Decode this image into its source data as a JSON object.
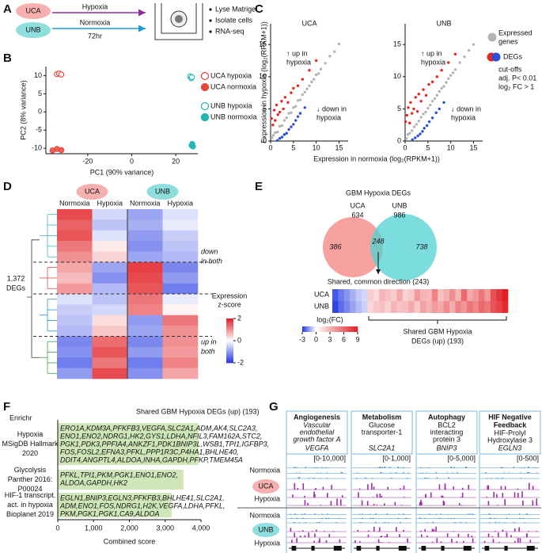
{
  "panel_labels": [
    "A",
    "B",
    "C",
    "D",
    "E",
    "F",
    "G"
  ],
  "design": {
    "groups": [
      "UCA",
      "UNB"
    ],
    "hypoxia": "Hypoxia",
    "normoxia": "Normoxia",
    "duration": "72hr",
    "steps": [
      "Lyse Matrigel",
      "Isolate cells",
      "RNA-seq"
    ]
  },
  "chart_data": [
    {
      "type": "pca",
      "xlabel": "PC1 (90% variance)",
      "ylabel": "PC2 (8% variance)",
      "xlim": [
        -39,
        30
      ],
      "ylim": [
        -11.5,
        12.5
      ],
      "xticks": [
        -20,
        0,
        20
      ],
      "yticks": [
        -10,
        -5,
        0,
        5,
        10
      ],
      "series": [
        {
          "name": "UCA hypoxia",
          "color": "#e8443a",
          "filled": false,
          "x": [
            -34,
            -33,
            -32
          ],
          "y": [
            10.4,
            10.6,
            10.3
          ]
        },
        {
          "name": "UCA normoxia",
          "color": "#e8443a",
          "filled": true,
          "x": [
            -36,
            -34,
            -32
          ],
          "y": [
            -10.6,
            -10.2,
            -10.5
          ]
        },
        {
          "name": "UNB hypoxia",
          "color": "#1fb5b5",
          "filled": false,
          "x": [
            26.5,
            27,
            27.3
          ],
          "y": [
            9.8,
            9.3,
            9.6
          ]
        },
        {
          "name": "UNB normoxia",
          "color": "#1fb5b5",
          "filled": true,
          "x": [
            27.2,
            27.5,
            27.8
          ],
          "y": [
            -9.2,
            -8.8,
            -9.5
          ]
        }
      ]
    },
    {
      "type": "scatter",
      "title": "UCA",
      "xlabel": "Expression in normoxia (log₂(RPKM+1))",
      "ylabel": "Expression in hypoxia (log₂(RPKM+1))",
      "xlim": [
        0,
        17
      ],
      "ylim": [
        0,
        17
      ],
      "xticks": [
        0,
        5,
        10,
        15
      ],
      "yticks": [
        0,
        5,
        10,
        15
      ],
      "up_label": [
        "↑ up in",
        "hypoxia"
      ],
      "down_label": [
        "↓ down in",
        "hypoxia"
      ],
      "series": [
        {
          "color": "#b3b3b3",
          "x": [
            0.3,
            0.6,
            1,
            1.5,
            2,
            2.5,
            3,
            3.5,
            4,
            4.5,
            5,
            5.5,
            6,
            6.5,
            7,
            7.5,
            8,
            8.5,
            9,
            9.5,
            10,
            10.5,
            11,
            12,
            13,
            14,
            15
          ],
          "y": [
            0.5,
            0.9,
            1.3,
            1.4,
            2.3,
            2.4,
            3.2,
            3.6,
            4.3,
            4.4,
            5.2,
            5.4,
            6.3,
            6.4,
            7.2,
            7.6,
            8.1,
            8.6,
            9.2,
            9.6,
            10.3,
            10.5,
            11.2,
            12.1,
            13.2,
            13.9,
            15.1
          ]
        },
        {
          "color": "#e8261e",
          "x": [
            0.2,
            0.5,
            0.8,
            1,
            1.3,
            1.6,
            2,
            2.4,
            2.8,
            3.2,
            3.8,
            4.5,
            5,
            6,
            7,
            8.5,
            10
          ],
          "y": [
            3.5,
            2.5,
            4.8,
            3.2,
            5.6,
            4.1,
            4.5,
            6.2,
            5,
            6.8,
            6,
            7.5,
            8.2,
            8.6,
            9.6,
            11,
            12.5
          ]
        },
        {
          "color": "#2a4fd6",
          "x": [
            1.5,
            2,
            2.5,
            3,
            3.5,
            4,
            4.5,
            5,
            5.5,
            6,
            6.5,
            7.5
          ],
          "y": [
            0.1,
            0.4,
            0.6,
            1,
            1.2,
            1.8,
            2.2,
            2.6,
            3.2,
            3.8,
            4.3,
            5.2
          ]
        }
      ]
    },
    {
      "type": "scatter",
      "title": "UNB",
      "xlim": [
        0,
        17
      ],
      "ylim": [
        0,
        17
      ],
      "xticks": [
        0,
        5,
        10,
        15
      ],
      "yticks": [
        0,
        5,
        10,
        15
      ],
      "up_label": [
        "↑ up in",
        "hypoxia"
      ],
      "down_label": [
        "↓ down in",
        "hypoxia"
      ],
      "series": [
        {
          "color": "#b3b3b3",
          "x": [
            0.3,
            0.6,
            1,
            1.5,
            2,
            2.5,
            3,
            3.5,
            4,
            4.5,
            5,
            5.5,
            6,
            6.5,
            7,
            7.5,
            8,
            8.5,
            9,
            9.5,
            10,
            10.5,
            11,
            12,
            13,
            14,
            15
          ],
          "y": [
            0.4,
            1,
            1.2,
            1.6,
            2.2,
            2.6,
            3.1,
            3.7,
            4.2,
            4.5,
            5.1,
            5.6,
            6.2,
            6.6,
            7.1,
            7.7,
            8.2,
            8.5,
            9.1,
            9.7,
            10.2,
            10.6,
            11.1,
            12.2,
            13.1,
            14.1,
            15
          ]
        },
        {
          "color": "#e8261e",
          "x": [
            0.1,
            0.4,
            0.7,
            1,
            1.2,
            1.5,
            1.9,
            2.3,
            2.7,
            3,
            3.5,
            4,
            4.6,
            5.2,
            6,
            7,
            8,
            9.5,
            11
          ],
          "y": [
            3,
            4,
            5.2,
            2.8,
            6,
            4.3,
            5,
            6.8,
            4.6,
            7.3,
            6.2,
            8,
            7.1,
            8.8,
            9.2,
            10,
            11,
            12.2,
            13.5
          ]
        },
        {
          "color": "#2a4fd6",
          "x": [
            1.6,
            2.2,
            2.8,
            3.3,
            3.8,
            4.2,
            4.8,
            5.3,
            6,
            6.8,
            7.5,
            8.5
          ],
          "y": [
            0.2,
            0.5,
            0.8,
            1.1,
            1.5,
            2,
            2.4,
            3,
            3.6,
            4.4,
            5,
            6
          ]
        }
      ]
    },
    {
      "type": "heatmap",
      "groups": [
        "UCA",
        "UNB"
      ],
      "columns": [
        "Normoxia",
        "Hypoxia",
        "Normoxia",
        "Hypoxia"
      ],
      "colorbar_label": [
        "Expression",
        "z-score"
      ],
      "vlim": [
        -2,
        2
      ],
      "cticks": [
        2,
        0,
        -2
      ],
      "row_label": [
        "1,372",
        "DEGs"
      ],
      "down_label": [
        "down",
        "in both"
      ],
      "up_label": [
        "up in",
        "both"
      ],
      "values": [
        [
          1.6,
          -0.4,
          -0.9,
          -0.3
        ],
        [
          1.4,
          -0.6,
          -0.8,
          -0.2
        ],
        [
          1.5,
          -0.3,
          -1.0,
          -0.5
        ],
        [
          1.2,
          0.2,
          -1.1,
          -0.6
        ],
        [
          1.0,
          0.4,
          -0.9,
          -0.7
        ],
        [
          0.8,
          -0.9,
          1.7,
          -1.2
        ],
        [
          0.6,
          -1.1,
          1.6,
          -1.0
        ],
        [
          0.9,
          -0.7,
          1.5,
          -1.3
        ],
        [
          -0.3,
          -0.6,
          1.2,
          -0.2
        ],
        [
          -0.5,
          -0.4,
          1.1,
          0.1
        ],
        [
          -0.6,
          0.3,
          -1.0,
          1.2
        ],
        [
          -0.7,
          0.5,
          -0.9,
          1.0
        ],
        [
          -1.2,
          1.3,
          -1.2,
          1.0
        ],
        [
          -1.1,
          1.5,
          -1.0,
          0.9
        ],
        [
          -1.3,
          1.2,
          -1.3,
          1.1
        ],
        [
          -1.0,
          1.6,
          -1.1,
          0.8
        ]
      ]
    },
    {
      "type": "venn",
      "title": "GBM Hypoxia DEGs",
      "sets": [
        {
          "name": "UCA",
          "total": 634,
          "unique": 386,
          "color": "#f4837f"
        },
        {
          "name": "UNB",
          "total": 986,
          "unique": 738,
          "color": "#4fd1d1"
        }
      ],
      "shared": 248,
      "common_direction": "Shared, common direction (243)"
    },
    {
      "type": "strip",
      "rows": [
        "UCA",
        "UNB"
      ],
      "colorbar_label": "log₂(FC)",
      "vlim": [
        -3,
        9
      ],
      "cticks": [
        -3,
        0,
        3,
        6,
        9
      ],
      "bracket_label": [
        "Shared GBM Hypoxia",
        "DEGs (up) (193)"
      ],
      "values": [
        [
          -2.5,
          -2,
          -1.6,
          -1.2,
          -0.8,
          -0.6,
          2,
          1.5,
          3,
          2.5,
          2,
          3.5,
          1.8,
          2.2,
          4,
          3,
          2.8,
          5,
          2.5,
          3.2,
          4.5,
          3,
          6,
          3.5,
          4.2,
          5.5,
          4,
          7,
          8,
          9
        ],
        [
          -2.8,
          -2.2,
          -1.8,
          -1.4,
          -1,
          -0.7,
          1.6,
          2.2,
          2.5,
          1.8,
          3,
          2.4,
          2.6,
          3.4,
          2.2,
          3.8,
          3.1,
          4,
          3.5,
          4.6,
          3.3,
          5,
          4.2,
          5.6,
          4.8,
          6,
          5.4,
          6.8,
          7.5,
          8.5
        ]
      ]
    },
    {
      "type": "bar",
      "title": "Enrichr",
      "subtitle": "Shared GBM Hypoxia DEGs (up) (193)",
      "xlabel": "Combined score",
      "color": "#cfe6b8",
      "categories": [
        [
          "Hypoxia",
          "MSigDB Hallmark",
          "2020"
        ],
        [
          "Glycolysis",
          "Panther 2016:",
          "P00024"
        ],
        [
          "HIF-1 transcript.",
          "act. in hypoxia",
          "Bioplanet 2019"
        ]
      ],
      "genes": [
        [
          "ERO1A,KDM3A,PFKFB3,VEGFA,SLC2A1,ADM,AK4,SLC2A3,",
          "ENO1,ENO2,NDRG1,HK2,GYS1,LDHA,NFIL3,FAM162A,STC2,",
          "PGK1,PDK3,PPFIA4,ANKZF1,PDK1BNIP3L,WSB1,TPI1,IGFBP3,",
          "FOS,FOSL2,EFNA3,PFKL,PPP1R3C,P4HA1,BHLHE40,",
          "DDIT4,ANGPTL4,ALDOA,INHA,GAPDH,PFKP,TMEM45A"
        ],
        [
          "PFKL,TPI1,PKM,PGK1,ENO1,ENO2,",
          "ALDOA,GAPDH,HK2"
        ],
        [
          "EGLN1,BNIP3,EGLN3,PFKFB3,BHLHE41,SLC2A1,",
          "ADM,ENO1,FOS,NDRG1,H2K,VEGFA,LDHA,PFKL,",
          "PKM,PGK1,PGK1,CA9,ALDOA"
        ]
      ],
      "values": [
        3930,
        3510,
        3180
      ],
      "xlim": [
        0,
        4000
      ],
      "xticks": [
        0,
        {
          "value": 1000,
          "label": "1,000"
        },
        {
          "value": 2000,
          "label": "2,000"
        },
        {
          "value": 3000,
          "label": "3,000"
        },
        {
          "value": 4000,
          "label": "4,000"
        }
      ]
    }
  ],
  "scatter_legend": {
    "expressed": [
      "Expressed",
      "genes"
    ],
    "degs": "DEGs",
    "cutoffs": [
      "cut-offs",
      "adj. P< 0.01",
      "log₂ FC > 1"
    ]
  },
  "genome_tracks": {
    "columns": [
      {
        "title": [
          "Angiogenesis"
        ],
        "description": [
          "Vascular",
          "endothelial",
          "growth factor A"
        ],
        "gene": "VEGFA",
        "range": "[0-10,000]"
      },
      {
        "title": [
          "Metabolism"
        ],
        "description": [
          "Glucose",
          "transporter-1"
        ],
        "gene": "SLC2A1",
        "range": "[0-1,000]"
      },
      {
        "title": [
          "Autophagy"
        ],
        "description": [
          "BCL2",
          "interacting",
          "protein 3"
        ],
        "gene": "BNIP3",
        "range": "[0-5,000]"
      },
      {
        "title": [
          "HIF Negative",
          "Feedback"
        ],
        "description": [
          "HIF-Prolyl",
          "Hydroxylase 3"
        ],
        "gene": "EGLN3",
        "range": "[0-500]"
      }
    ]
  }
}
